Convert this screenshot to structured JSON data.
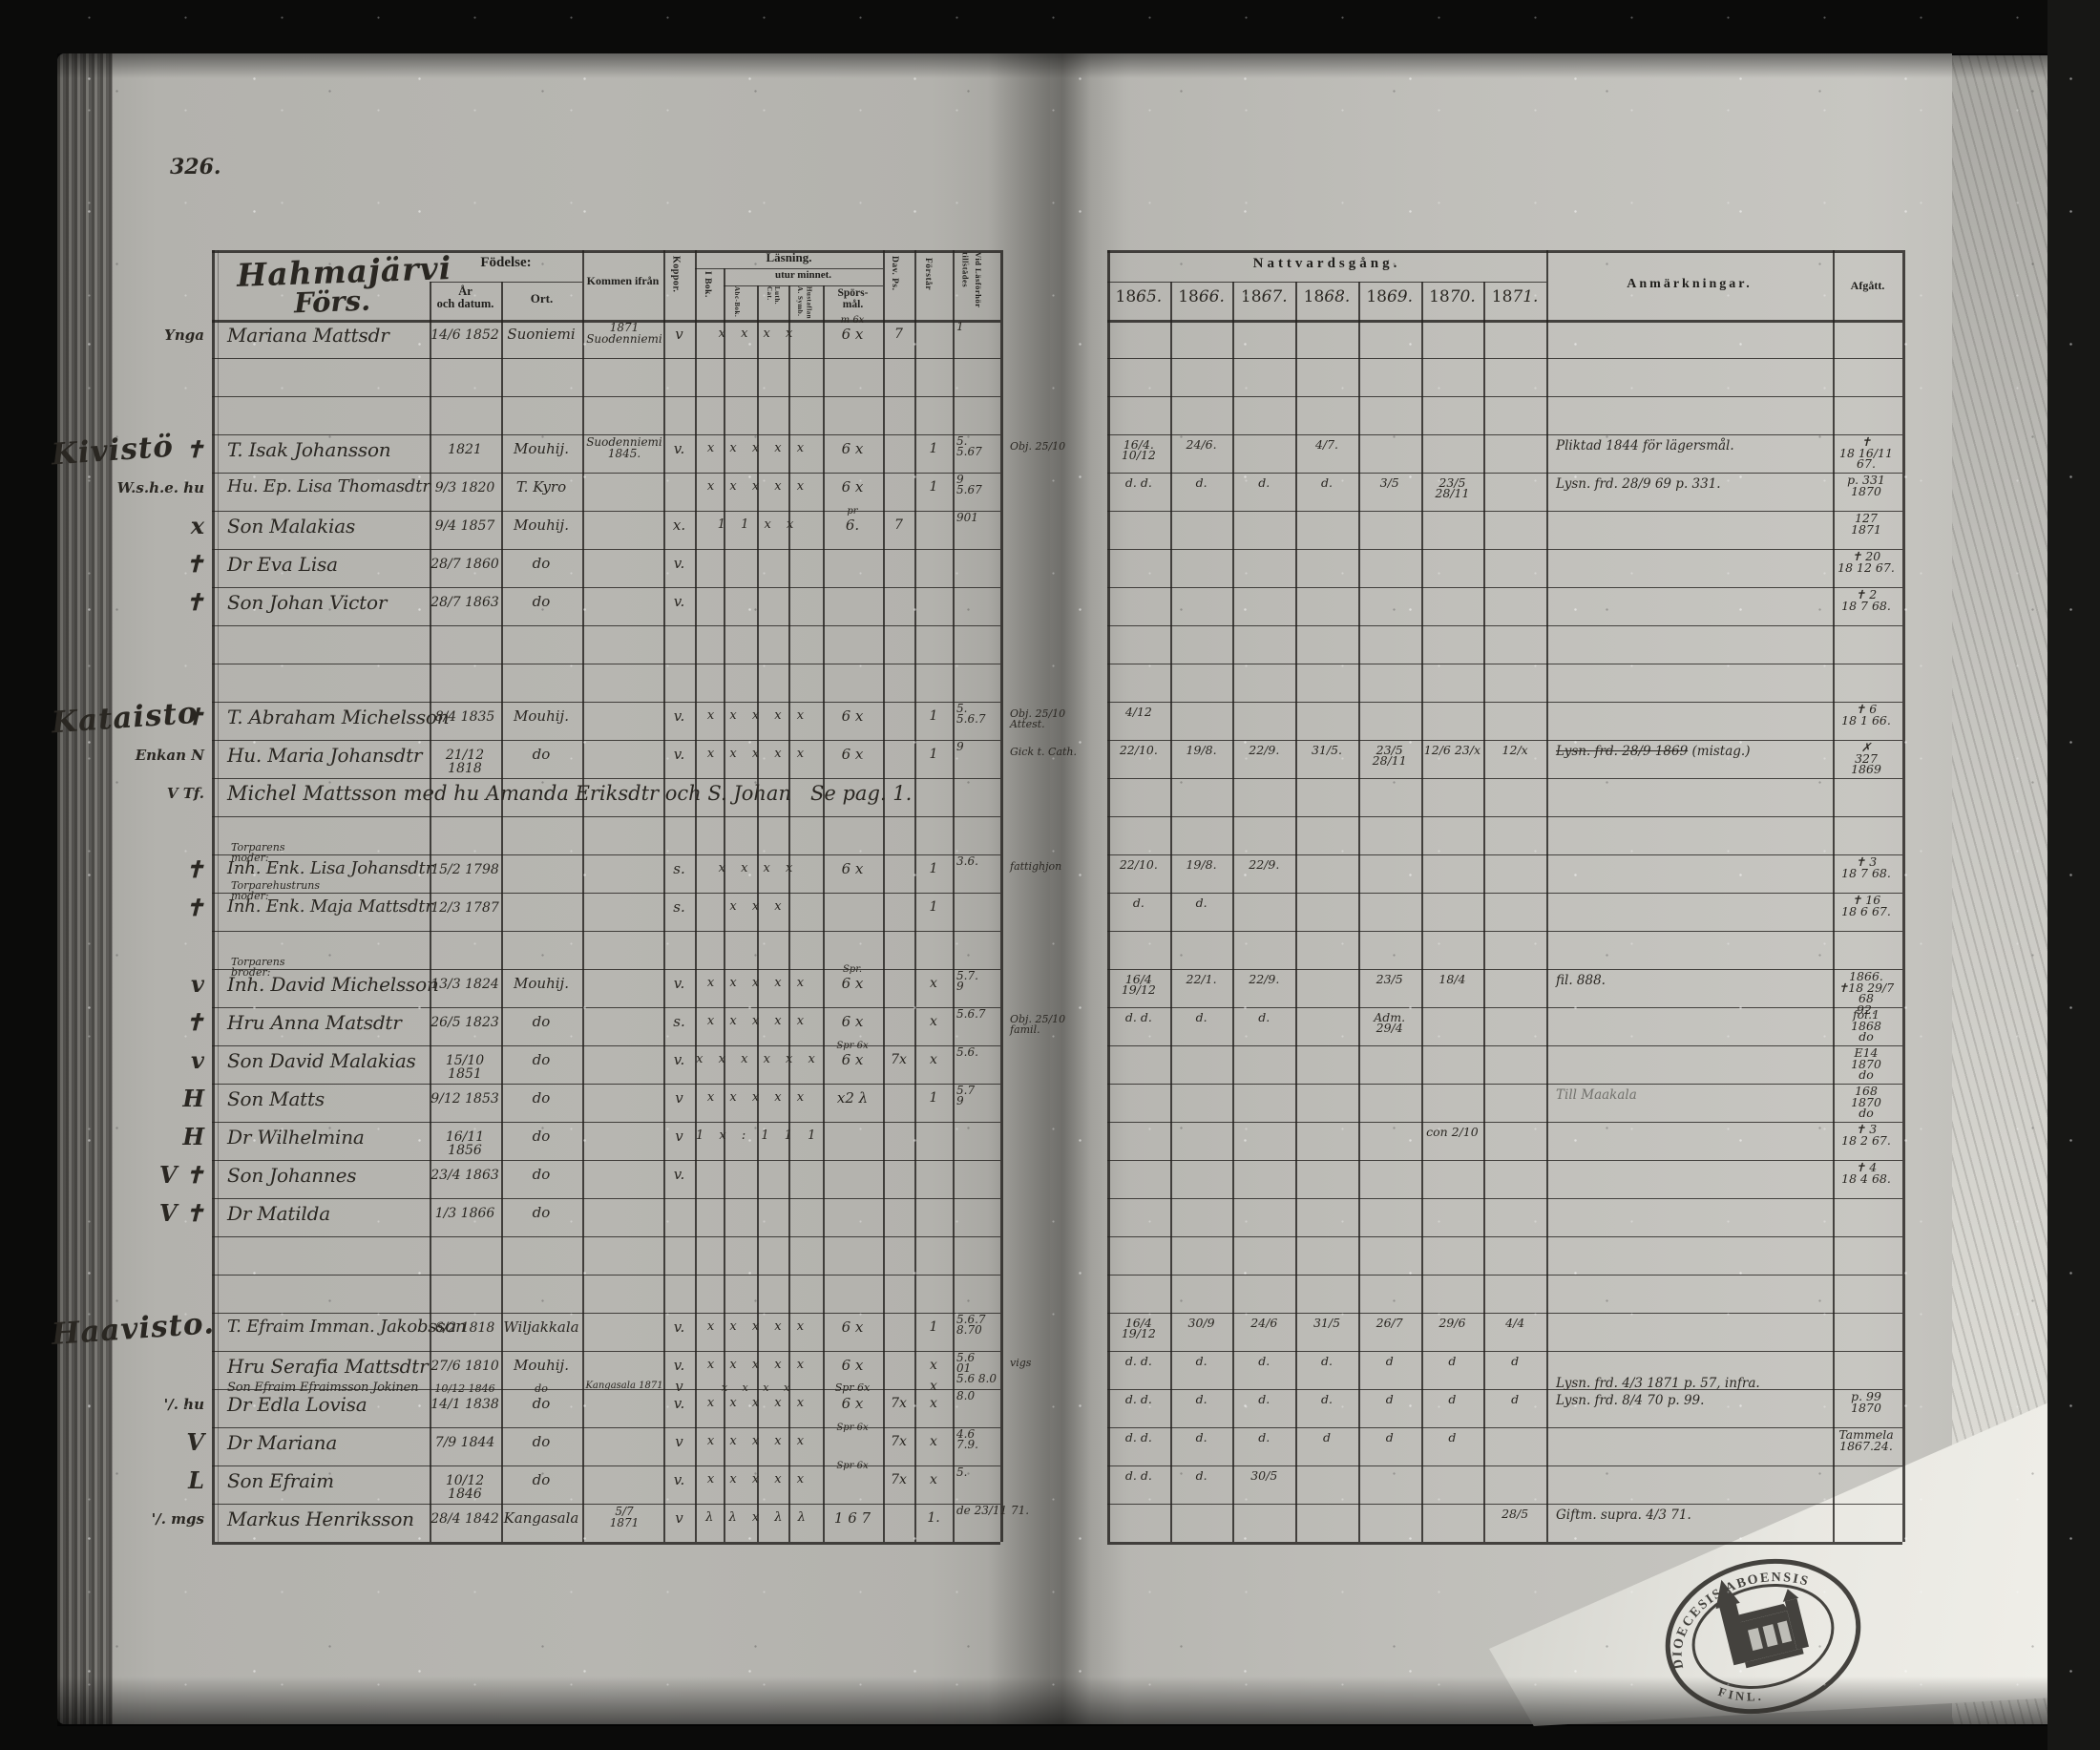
{
  "page": {
    "number": "326.",
    "title_line1": "Hahmajärvi",
    "title_line2": "Förs."
  },
  "form_headers": {
    "fodelse": "Födelse:",
    "ar_datum": "År\noch datum.",
    "ort": "Ort.",
    "kommen": "Kommen ifrån",
    "koppor": "Koppor.",
    "lasning": "Läsning.",
    "i_bok": "I Bok.",
    "utur": "utur minnet.",
    "abc": "Abc-Bok.",
    "luth": "Luth. Cat.",
    "hust_symb": "Hustaflan\nA. Symb.",
    "spors": "Spörs-\nmål.",
    "dav": "Dav. Ps.",
    "forstar": "Förstår",
    "vid": "Vid Läsförhör\ntillstädes",
    "nattvard": "Nattvardsgång.",
    "anm": "Anmärkningar.",
    "afgatt": "Afgått."
  },
  "years": [
    "1865.",
    "1866.",
    "1867.",
    "1868.",
    "1869.",
    "1870.",
    "1871."
  ],
  "stamp": {
    "top": "DIOECESIS ABOENSIS",
    "bottom": "FINL."
  },
  "rows": [
    {
      "line": 0,
      "margin": "Ynga",
      "name": "Mariana Mattsdr",
      "date": "14/6 1852",
      "ort": "Suoniemi",
      "kommen": "1871\nSuodenniemi",
      "koppor": "v",
      "read": "x x x x",
      "spors_above": "m 6x",
      "spors": "6 x",
      "dav": "7",
      "vid": "1"
    },
    {
      "line": 3,
      "section": "Kivistö",
      "margin": "✝",
      "name": "T. Isak Johansson",
      "date": "1821",
      "ort": "Mouhij.",
      "kommen": "Suodenniemi\n1845.",
      "koppor": "v.",
      "read": "x x x x x",
      "spors": "6 x",
      "forstar": "1",
      "vid": "5.\n5.67",
      "vid_note": "Obj. 25/10",
      "comm": [
        "16/4. 10/12",
        "24/6.",
        "",
        "4/7.",
        "",
        "",
        ""
      ],
      "anm": "Pliktad 1844 för lägersmål.",
      "afgatt": "✝\n18 16/11 67."
    },
    {
      "line": 4,
      "margin": "W.s.h.e. hu",
      "name": "Hu. Ep. Lisa Thomasdtr",
      "date": "9/3 1820",
      "ort": "T. Kyro",
      "read": "x x x x x",
      "spors": "6 x",
      "forstar": "1",
      "vid": "9\n5.67",
      "comm": [
        "d. d.",
        "d.",
        "d.",
        "d.",
        "3/5",
        "23/5 28/11",
        ""
      ],
      "anm": "Lysn. frd. 28/9 69 p. 331.",
      "afgatt": "p. 331\n1870"
    },
    {
      "line": 5,
      "margin": "x",
      "name": "Son Malakias",
      "date": "9/4 1857",
      "ort": "Mouhij.",
      "koppor": "x.",
      "read": "1 1 x x",
      "spors_above": "pr",
      "spors": "6.",
      "dav": "7",
      "vid": "901",
      "afgatt": "127\n1871"
    },
    {
      "line": 6,
      "margin": "✝",
      "name": "Dr Eva Lisa",
      "date": "28/7 1860",
      "ort": "do",
      "koppor": "v.",
      "afgatt": "✝ 20\n18 12 67."
    },
    {
      "line": 7,
      "margin": "✝",
      "name": "Son Johan Victor",
      "date": "28/7 1863",
      "ort": "do",
      "koppor": "v.",
      "afgatt": "✝ 2\n18 7 68."
    },
    {
      "line": 10,
      "section": "Kataisto",
      "margin": "✝",
      "name": "T. Abraham Michelsson",
      "date": "8/4 1835",
      "ort": "Mouhij.",
      "koppor": "v.",
      "read": "x x x x x",
      "spors": "6 x",
      "forstar": "1",
      "vid": "5.\n5.6.7",
      "vid_note": "Obj. 25/10 Attest.",
      "comm": [
        "4/12",
        "",
        "",
        "",
        "",
        "",
        ""
      ],
      "afgatt": "✝ 6\n18 1 66."
    },
    {
      "line": 11,
      "margin": "Enkan N",
      "name": "Hu. Maria Johansdtr",
      "date": "21/12 1818",
      "ort": "do",
      "koppor": "v.",
      "read": "x x x x x",
      "spors": "6 x",
      "forstar": "1",
      "vid": "9",
      "vid_note": "Gick t. Cath.",
      "comm": [
        "22/10.",
        "19/8.",
        "22/9.",
        "31/5.",
        "23/5 28/11",
        "12/6 23/x",
        "12/x"
      ],
      "anm": "Lysn. frd. 28/9 1869",
      "anm2": "(mistag.)",
      "afgatt": "✗\n327\n1869"
    },
    {
      "line": 12,
      "margin": "V Tf.",
      "name_span": "Michel Mattsson med hu Amanda Eriksdtr och S. Johan   Se pag. 1."
    },
    {
      "line": 14,
      "label_above": "Torparens moder:",
      "margin": "✝",
      "name": "Inh. Enk. Lisa Johansdtr",
      "date": "15/2 1798",
      "koppor": "s.",
      "read": "x x x x",
      "spors": "6 x",
      "forstar": "1",
      "vid": "3.6.",
      "vid_note": "fattighjon",
      "comm": [
        "22/10.",
        "19/8.",
        "22/9.",
        "",
        "",
        "",
        ""
      ],
      "afgatt": "✝ 3\n18 7 68."
    },
    {
      "line": 15,
      "label_above": "Torparehustruns moder:",
      "margin": "✝",
      "name": "Inh. Enk. Maja Mattsdtr",
      "date": "12/3 1787",
      "koppor": "s.",
      "read": "x x x",
      "forstar": "1",
      "comm": [
        "d.",
        "d.",
        "",
        "",
        "",
        "",
        ""
      ],
      "afgatt": "✝ 16\n18 6 67."
    },
    {
      "line": 17,
      "label_above": "Torparens broder:",
      "margin": "v",
      "name": "Inh. David Michelsson",
      "date": "13/3 1824",
      "ort": "Mouhij.",
      "koppor": "v.",
      "read": "x x x x x",
      "spors_above": "Spr.",
      "spors": "6 x",
      "forstar": "x",
      "vid": "5.7.\n9",
      "comm": [
        "16/4 19/12",
        "22/1.",
        "22/9.",
        "",
        "23/5",
        "18/4",
        ""
      ],
      "anm": "fil. 888.",
      "afgatt": "1866.\n✝18 29/7 68\n92."
    },
    {
      "line": 18,
      "margin": "✝",
      "name": "Hru Anna Matsdtr",
      "date": "26/5 1823",
      "ort": "do",
      "koppor": "s.",
      "read": "x x x x x",
      "spors": "6 x",
      "forstar": "x",
      "vid": "5.6.7",
      "vid_note": "Obj. 25/10 famil.",
      "comm": [
        "d. d.",
        "d.",
        "d.",
        "",
        "Adm. 29/4",
        "",
        ""
      ],
      "afgatt": "fol.1\n1868\ndo"
    },
    {
      "line": 19,
      "margin": "v",
      "name": "Son David Malakias",
      "date": "15/10 1851",
      "ort": "do",
      "koppor": "v.",
      "read": "x x x x x x",
      "spors_above": "Spr 6x",
      "spors": "6 x",
      "dav": "7x",
      "forstar": "x",
      "vid": "5.6.",
      "afgatt": "E14\n1870\ndo"
    },
    {
      "line": 20,
      "margin": "H",
      "name": "Son Matts",
      "date": "9/12 1853",
      "ort": "do",
      "koppor": "v",
      "read": "x x x x x",
      "spors": "x2 λ",
      "forstar": "1",
      "vid": "5.7\n9",
      "anm": "Till Maakala",
      "pencil": true,
      "afgatt": "168\n1870\ndo"
    },
    {
      "line": 21,
      "margin": "H",
      "name": "Dr Wilhelmina",
      "date": "16/11 1856",
      "ort": "do",
      "koppor": "v",
      "read": "1 x : 1 1 1",
      "comm": [
        "",
        "",
        "",
        "",
        "",
        "con 2/10",
        ""
      ],
      "afgatt": "✝ 3\n18 2 67."
    },
    {
      "line": 22,
      "margin": "V ✝",
      "name": "Son Johannes",
      "date": "23/4 1863",
      "ort": "do",
      "koppor": "v.",
      "afgatt": "✝ 4\n18 4 68."
    },
    {
      "line": 23,
      "margin": "V ✝",
      "name": "Dr Matilda",
      "date": "1/3 1866",
      "ort": "do"
    },
    {
      "line": 26,
      "section": "Haavisto.",
      "name": "T. Efraim Imman. Jakobsson",
      "date": "6/2 1818",
      "ort": "Wiljakkala",
      "koppor": "v.",
      "read": "x x x x x",
      "spors": "6 x",
      "forstar": "1",
      "vid": "5.6.7\n8.70",
      "comm": [
        "16/4 19/12",
        "30/9",
        "24/6",
        "31/5",
        "26/7",
        "29/6",
        "4/4"
      ]
    },
    {
      "line": 27,
      "name": "Hru Serafia Mattsdtr",
      "date": "27/6 1810",
      "ort": "Mouhij.",
      "koppor": "v.",
      "read": "x x x x x",
      "spors": "6 x",
      "forstar": "x",
      "vid": "5.6\n01",
      "vid_note": "vigs",
      "comm": [
        "d. d.",
        "d.",
        "d.",
        "d.",
        "d",
        "d",
        "d"
      ]
    },
    {
      "line": 27.55,
      "small": true,
      "name": "Son Efraim Efraimsson Jokinen",
      "date": "10/12 1846",
      "ort": "do",
      "kommen": "Kangasala 1871",
      "koppor": "v",
      "read": "x x x x",
      "spors": "Spr 6x",
      "forstar": "x",
      "vid": "5.6  8.0",
      "anm": "Lysn. frd. 4/3 1871 p. 57, infra."
    },
    {
      "line": 28,
      "margin": "'/. hu",
      "name": "Dr Edla Lovisa",
      "date": "14/1 1838",
      "ort": "do",
      "koppor": "v.",
      "read": "x x x x x",
      "spors": "6 x",
      "dav": "7x",
      "forstar": "x",
      "vid": "8.0",
      "comm": [
        "d. d.",
        "d.",
        "d.",
        "d.",
        "d",
        "d",
        "d"
      ],
      "anm": "Lysn. frd. 8/4 70 p. 99.",
      "afgatt": "p. 99\n1870"
    },
    {
      "line": 29,
      "margin": "V",
      "name": "Dr Mariana",
      "date": "7/9 1844",
      "ort": "do",
      "koppor": "v",
      "read": "x x x x x",
      "spors_above": "Spr 6x",
      "dav": "7x",
      "forstar": "x",
      "vid": "4.6\n7.9.",
      "comm": [
        "d. d.",
        "d.",
        "d.",
        "d",
        "d",
        "d",
        ""
      ],
      "afgatt": "Tammela\n1867.24."
    },
    {
      "line": 30,
      "margin": "L",
      "name": "Son Efraim",
      "date": "10/12 1846",
      "ort": "do",
      "koppor": "v.",
      "read": "x x x x x",
      "spors_above": "Spr 6x",
      "dav": "7x",
      "forstar": "x",
      "vid": "5.",
      "comm": [
        "d. d.",
        "d.",
        "30/5",
        "",
        "",
        "",
        ""
      ]
    },
    {
      "line": 31,
      "margin": "'/. mgs",
      "name": "Markus Henriksson",
      "date": "28/4 1842",
      "ort": "Kangasala",
      "kommen": "5/7\n1871",
      "koppor": "v",
      "read": "λ λ x λ λ",
      "spors": "1 6 7",
      "forstar": "1.",
      "vid": "de 23/11 71.",
      "comm": [
        "",
        "",
        "",
        "",
        "",
        "",
        "28/5"
      ],
      "anm": "Giftm. supra. 4/3 71."
    }
  ]
}
